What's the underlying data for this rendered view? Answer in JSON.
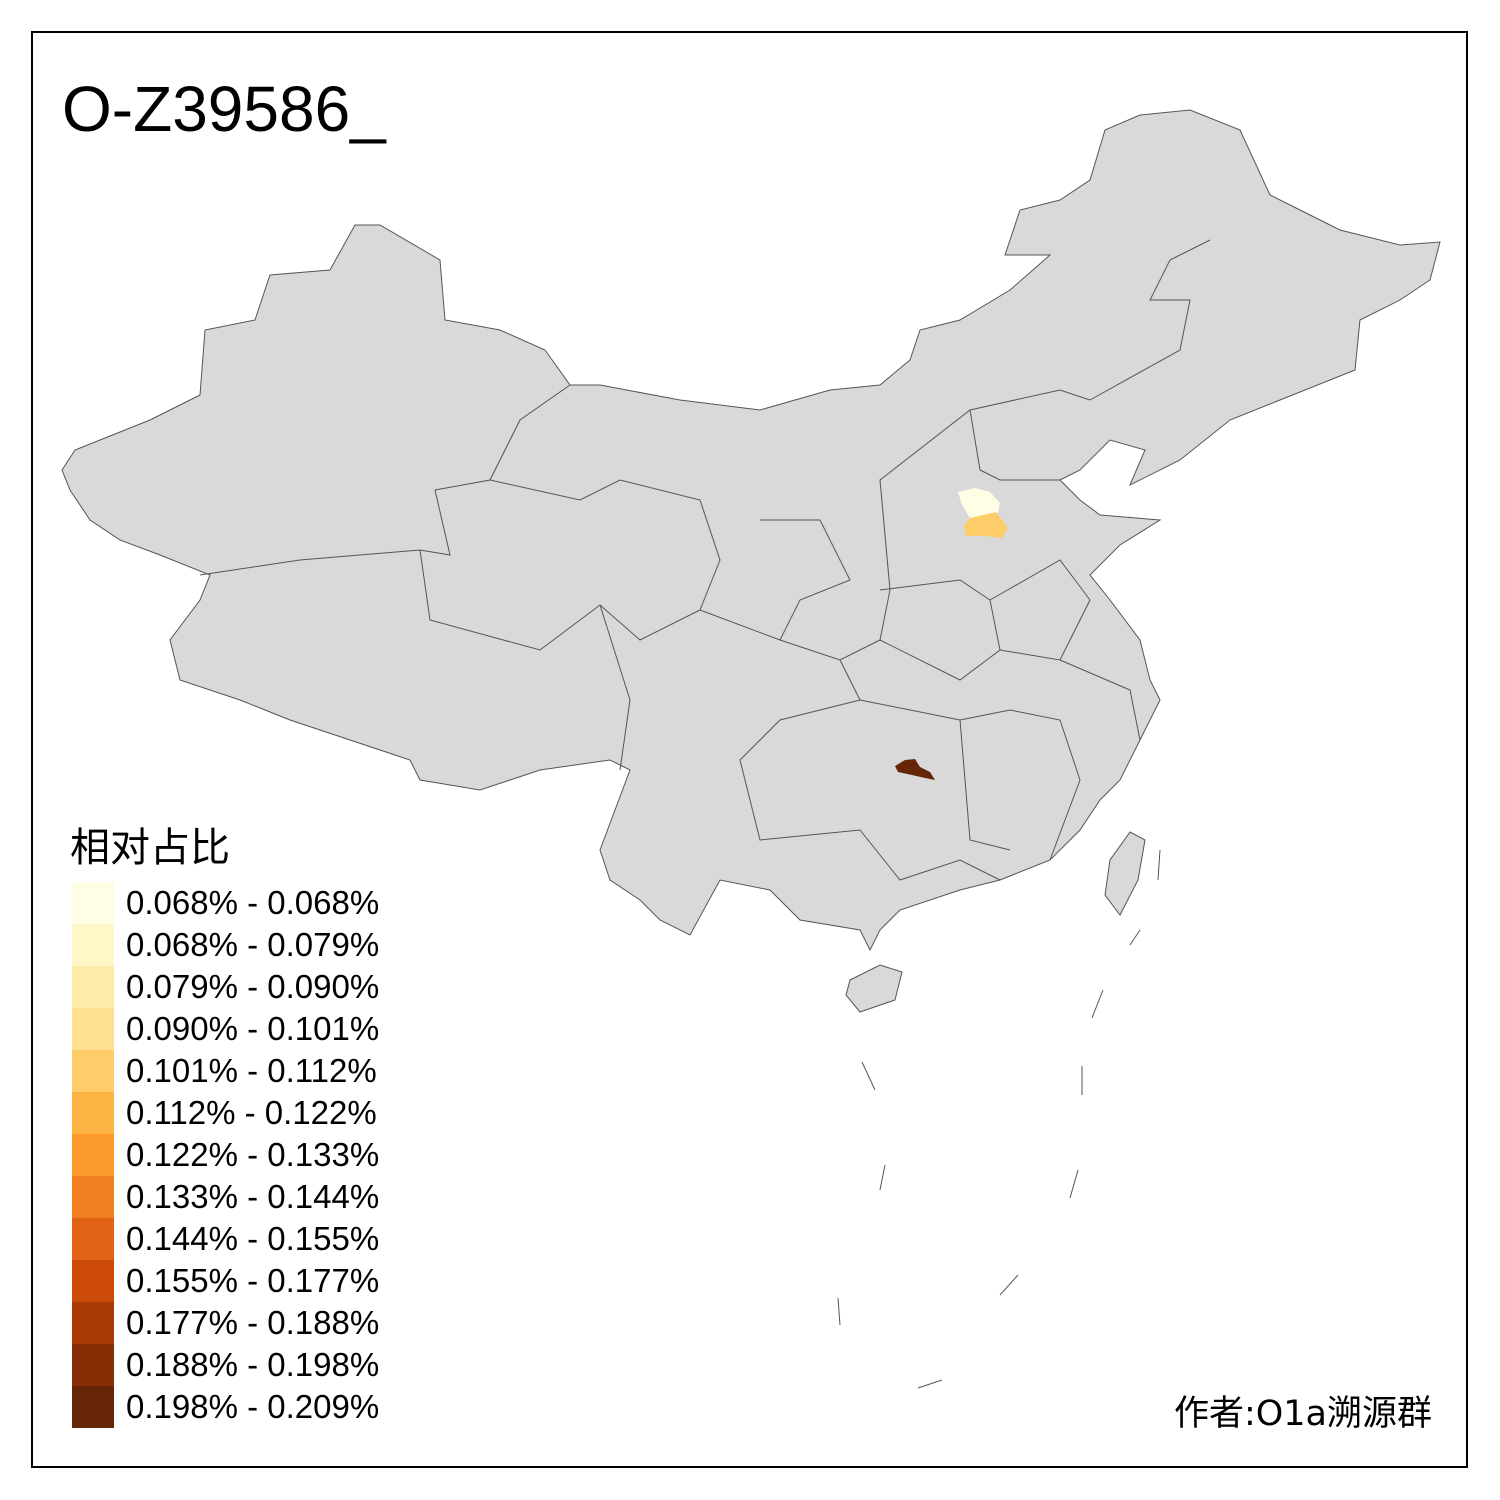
{
  "title": "O-Z39586_",
  "legend": {
    "title": "相对占比",
    "items": [
      {
        "label": "0.068% - 0.068%",
        "color": "#FFFEE4"
      },
      {
        "label": "0.068% - 0.079%",
        "color": "#FFF7C8"
      },
      {
        "label": "0.079% - 0.090%",
        "color": "#FEEBAA"
      },
      {
        "label": "0.090% - 0.101%",
        "color": "#FEE08F"
      },
      {
        "label": "0.101% - 0.112%",
        "color": "#FECD6A"
      },
      {
        "label": "0.112% - 0.122%",
        "color": "#FDB445"
      },
      {
        "label": "0.122% - 0.133%",
        "color": "#FB9A2A"
      },
      {
        "label": "0.133% - 0.144%",
        "color": "#F07F1F"
      },
      {
        "label": "0.144% - 0.155%",
        "color": "#E06316"
      },
      {
        "label": "0.155% - 0.177%",
        "color": "#CB4A08"
      },
      {
        "label": "0.177% - 0.188%",
        "color": "#AA3A04"
      },
      {
        "label": "0.188% - 0.198%",
        "color": "#852E05"
      },
      {
        "label": "0.198% - 0.209%",
        "color": "#662506"
      }
    ]
  },
  "map": {
    "base_color": "#D9D9D9",
    "border_color": "#555555",
    "highlighted_regions": [
      {
        "name": "north-region-a",
        "color": "#FFFEE4"
      },
      {
        "name": "north-region-b",
        "color": "#FECD6A"
      },
      {
        "name": "central-region",
        "color": "#662506"
      }
    ]
  },
  "author": "作者:O1a溯源群"
}
